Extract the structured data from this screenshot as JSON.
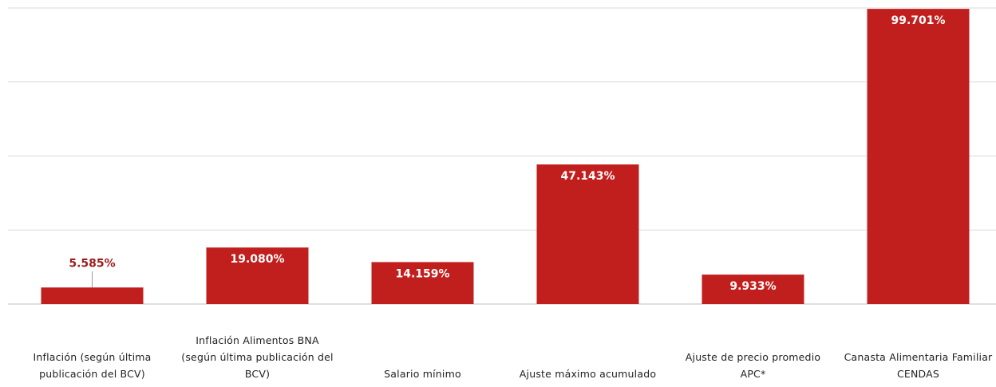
{
  "chart_data": {
    "type": "bar",
    "categories": [
      "Inflación (según última publicación del BCV)",
      "Inflación Alimentos BNA (según última publicación del BCV)",
      "Salario mínimo",
      "Ajuste máximo acumulado",
      "Ajuste de precio promedio APC*",
      "Canasta Alimentaria Familiar CENDAS"
    ],
    "values": [
      5.585,
      19.08,
      14.159,
      47.143,
      9.933,
      99.701
    ],
    "value_labels": [
      "5.585%",
      "19.080%",
      "14.159%",
      "47.143%",
      "9.933%",
      "99.701%"
    ],
    "color": "#c11f1d",
    "ylim": [
      0,
      100
    ],
    "yticks": [
      0,
      25,
      50,
      75,
      100
    ],
    "grid": true
  }
}
